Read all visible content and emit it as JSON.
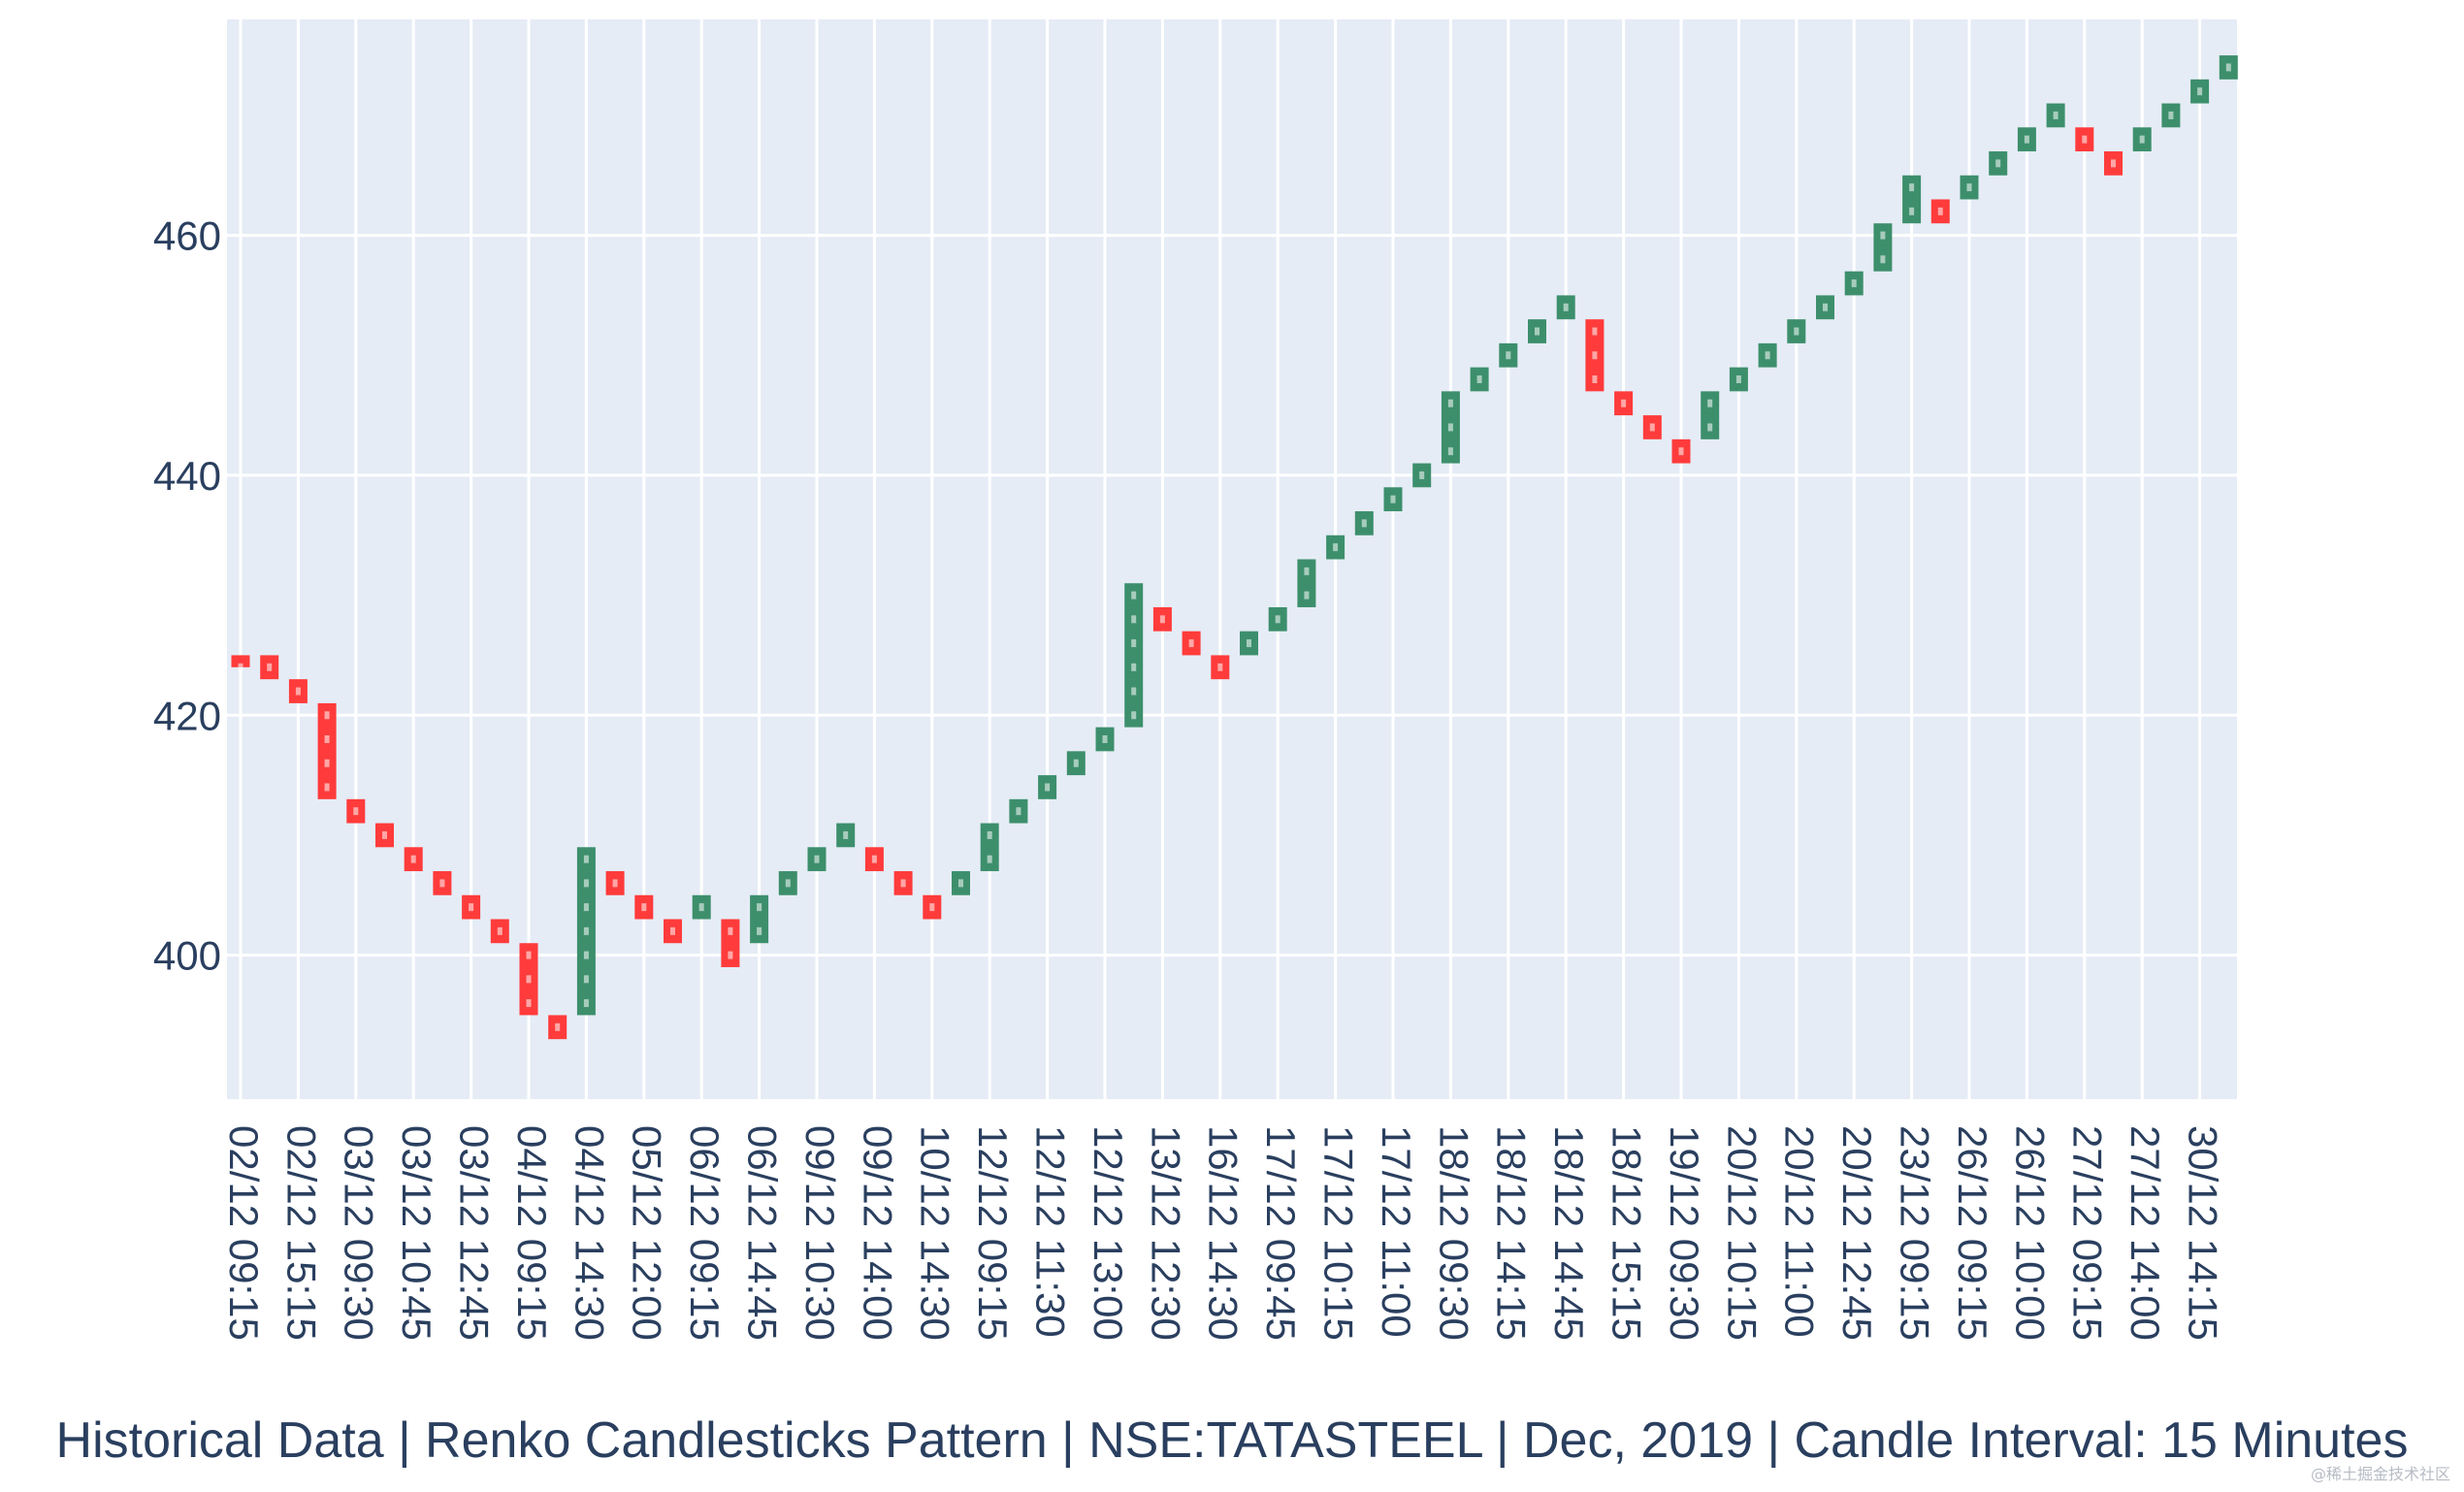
{
  "caption": "Historical Data | Renko Candlesticks Pattern | NSE:TATASTEEL | Dec, 2019 | Candle Interval: 15 Minutes",
  "watermark": "@稀土掘金技术社区",
  "colors": {
    "up": "#3d8f6c",
    "down": "#ff3b3b",
    "plot_bg": "#e5ecf6",
    "grid": "#ffffff",
    "text": "#2a3f5f"
  },
  "chart_data": {
    "type": "renko",
    "title": "Historical Data | Renko Candlesticks Pattern | NSE:TATASTEEL | Dec, 2019 | Candle Interval: 15 Minutes",
    "brick_size": 2,
    "ylim": [
      388,
      478
    ],
    "yticks": [
      400,
      420,
      440,
      460
    ],
    "grid": true,
    "xticks": [
      "02/12 09:15",
      "02/12 15:15",
      "03/12 09:30",
      "03/12 10:45",
      "03/12 12:45",
      "04/12 09:15",
      "04/12 14:30",
      "05/12 12:00",
      "06/12 09:15",
      "06/12 14:45",
      "09/12 10:30",
      "09/12 14:00",
      "10/12 14:30",
      "12/12 09:15",
      "12/12 11:30",
      "12/12 13:00",
      "13/12 12:30",
      "16/12 14:30",
      "17/12 09:45",
      "17/12 10:15",
      "17/12 11:00",
      "18/12 09:30",
      "18/12 14:15",
      "18/12 14:45",
      "18/12 15:15",
      "19/12 09:30",
      "20/12 10:15",
      "20/12 11:00",
      "20/12 12:45",
      "23/12 09:15",
      "26/12 09:15",
      "26/12 10:00",
      "27/12 09:15",
      "27/12 14:00",
      "30/12 14:15"
    ],
    "tick_positions": [
      0,
      2,
      4,
      6,
      8,
      10,
      12,
      14,
      16,
      18,
      20,
      22,
      24,
      26,
      28,
      30,
      32,
      34,
      36,
      38,
      40,
      42,
      44,
      46,
      48,
      50,
      52,
      54,
      56,
      58,
      60,
      62,
      64,
      66,
      68
    ],
    "candles": [
      {
        "open": 425,
        "close": 424
      },
      {
        "open": 425,
        "close": 423
      },
      {
        "open": 423,
        "close": 421
      },
      {
        "open": 421,
        "close": 413
      },
      {
        "open": 413,
        "close": 411
      },
      {
        "open": 411,
        "close": 409
      },
      {
        "open": 409,
        "close": 407
      },
      {
        "open": 407,
        "close": 405
      },
      {
        "open": 405,
        "close": 403
      },
      {
        "open": 403,
        "close": 401
      },
      {
        "open": 401,
        "close": 395
      },
      {
        "open": 395,
        "close": 393
      },
      {
        "open": 395,
        "close": 409
      },
      {
        "open": 407,
        "close": 405
      },
      {
        "open": 405,
        "close": 403
      },
      {
        "open": 403,
        "close": 401
      },
      {
        "open": 403,
        "close": 405
      },
      {
        "open": 403,
        "close": 399
      },
      {
        "open": 401,
        "close": 405
      },
      {
        "open": 405,
        "close": 407
      },
      {
        "open": 407,
        "close": 409
      },
      {
        "open": 409,
        "close": 411
      },
      {
        "open": 409,
        "close": 407
      },
      {
        "open": 407,
        "close": 405
      },
      {
        "open": 405,
        "close": 403
      },
      {
        "open": 405,
        "close": 407
      },
      {
        "open": 407,
        "close": 411
      },
      {
        "open": 411,
        "close": 413
      },
      {
        "open": 413,
        "close": 415
      },
      {
        "open": 415,
        "close": 417
      },
      {
        "open": 417,
        "close": 419
      },
      {
        "open": 419,
        "close": 431
      },
      {
        "open": 429,
        "close": 427
      },
      {
        "open": 427,
        "close": 425
      },
      {
        "open": 425,
        "close": 423
      },
      {
        "open": 425,
        "close": 427
      },
      {
        "open": 427,
        "close": 429
      },
      {
        "open": 429,
        "close": 433
      },
      {
        "open": 433,
        "close": 435
      },
      {
        "open": 435,
        "close": 437
      },
      {
        "open": 437,
        "close": 439
      },
      {
        "open": 439,
        "close": 441
      },
      {
        "open": 441,
        "close": 447
      },
      {
        "open": 447,
        "close": 449
      },
      {
        "open": 449,
        "close": 451
      },
      {
        "open": 451,
        "close": 453
      },
      {
        "open": 453,
        "close": 455
      },
      {
        "open": 453,
        "close": 447
      },
      {
        "open": 447,
        "close": 445
      },
      {
        "open": 445,
        "close": 443
      },
      {
        "open": 443,
        "close": 441
      },
      {
        "open": 443,
        "close": 447
      },
      {
        "open": 447,
        "close": 449
      },
      {
        "open": 449,
        "close": 451
      },
      {
        "open": 451,
        "close": 453
      },
      {
        "open": 453,
        "close": 455
      },
      {
        "open": 455,
        "close": 457
      },
      {
        "open": 457,
        "close": 461
      },
      {
        "open": 461,
        "close": 465
      },
      {
        "open": 463,
        "close": 461
      },
      {
        "open": 463,
        "close": 465
      },
      {
        "open": 465,
        "close": 467
      },
      {
        "open": 467,
        "close": 469
      },
      {
        "open": 469,
        "close": 471
      },
      {
        "open": 469,
        "close": 467
      },
      {
        "open": 467,
        "close": 465
      },
      {
        "open": 467,
        "close": 469
      },
      {
        "open": 469,
        "close": 471
      },
      {
        "open": 471,
        "close": 473
      },
      {
        "open": 473,
        "close": 475
      }
    ]
  }
}
